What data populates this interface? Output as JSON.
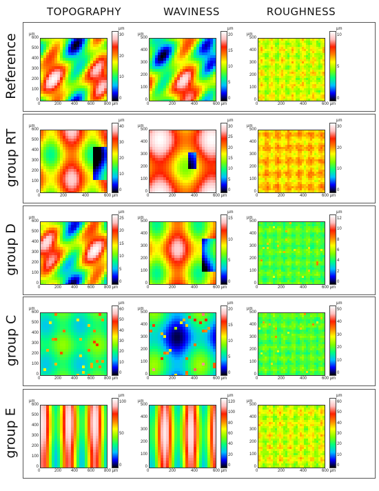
{
  "columns": [
    "TOPOGRAPHY",
    "WAVINESS",
    "ROUGHNESS"
  ],
  "unit": "µm",
  "rows": [
    {
      "label": "Reference",
      "panels": [
        {
          "type": "topography",
          "y_ticks": [
            "600",
            "500",
            "400",
            "300",
            "200",
            "100",
            "0"
          ],
          "x_ticks": [
            "0",
            "200",
            "400",
            "600",
            "800 µm"
          ],
          "cbar_ticks": [
            "30",
            "20",
            "10",
            "0"
          ],
          "scheme": "mixed"
        },
        {
          "type": "waviness",
          "y_ticks": [
            "500",
            "400",
            "300",
            "200",
            "100",
            "0"
          ],
          "x_ticks": [
            "0",
            "200",
            "400",
            "600 µm"
          ],
          "cbar_ticks": [
            "20",
            "15",
            "10",
            "5",
            "0"
          ],
          "scheme": "mixed"
        },
        {
          "type": "roughness",
          "y_ticks": [
            "500",
            "400",
            "300",
            "200",
            "100",
            "0"
          ],
          "x_ticks": [
            "0",
            "200",
            "400",
            "600 µm"
          ],
          "cbar_ticks": [
            "10",
            "5",
            "0"
          ],
          "scheme": "fine-yellow"
        }
      ]
    },
    {
      "label": "group RT",
      "panels": [
        {
          "type": "topography",
          "y_ticks": [
            "600",
            "500",
            "400",
            "300",
            "200",
            "100",
            "0"
          ],
          "x_ticks": [
            "0",
            "200",
            "400",
            "600 µm"
          ],
          "cbar_ticks": [
            "40",
            "30",
            "20",
            "10",
            "0"
          ],
          "scheme": "warm"
        },
        {
          "type": "waviness",
          "y_ticks": [
            "500",
            "400",
            "300",
            "200",
            "100",
            "0"
          ],
          "x_ticks": [
            "0",
            "200",
            "400",
            "600 µm"
          ],
          "cbar_ticks": [
            "30",
            "25",
            "20",
            "15",
            "10",
            "5",
            "0"
          ],
          "scheme": "hot"
        },
        {
          "type": "roughness",
          "y_ticks": [
            "500",
            "400",
            "300",
            "200",
            "100",
            "0"
          ],
          "x_ticks": [
            "0",
            "200",
            "400",
            "600 µm"
          ],
          "cbar_ticks": [
            "30",
            "20",
            "10",
            "0"
          ],
          "scheme": "fine-orange"
        }
      ]
    },
    {
      "label": "group D",
      "panels": [
        {
          "type": "topography",
          "y_ticks": [
            "600",
            "500",
            "400",
            "300",
            "200",
            "100",
            "0"
          ],
          "x_ticks": [
            "0",
            "200",
            "400",
            "600",
            "800 µm"
          ],
          "cbar_ticks": [
            "25",
            "20",
            "15",
            "10",
            "5",
            "0"
          ],
          "scheme": "mixed"
        },
        {
          "type": "waviness",
          "y_ticks": [
            "500",
            "400",
            "300",
            "200",
            "100",
            "0"
          ],
          "x_ticks": [
            "0",
            "200",
            "400",
            "600 µm"
          ],
          "cbar_ticks": [
            "15",
            "10",
            "5",
            "0"
          ],
          "scheme": "warm"
        },
        {
          "type": "roughness",
          "y_ticks": [
            "500",
            "400",
            "300",
            "200",
            "100",
            "0"
          ],
          "x_ticks": [
            "0",
            "200",
            "400",
            "600 µm"
          ],
          "cbar_ticks": [
            "12",
            "10",
            "8",
            "6",
            "4",
            "2",
            "0"
          ],
          "scheme": "fine-green"
        }
      ]
    },
    {
      "label": "group C",
      "panels": [
        {
          "type": "topography",
          "y_ticks": [
            "600",
            "500",
            "400",
            "300",
            "200",
            "100",
            "0"
          ],
          "x_ticks": [
            "0",
            "200",
            "400",
            "600",
            "800 µm"
          ],
          "cbar_ticks": [
            "60",
            "50",
            "40",
            "30",
            "20",
            "10",
            "0"
          ],
          "scheme": "cool"
        },
        {
          "type": "waviness",
          "y_ticks": [
            "500",
            "400",
            "300",
            "200",
            "100",
            "0"
          ],
          "x_ticks": [
            "0",
            "200",
            "400",
            "600 µm"
          ],
          "cbar_ticks": [
            "20",
            "15",
            "10",
            "5",
            "0"
          ],
          "scheme": "blue"
        },
        {
          "type": "roughness",
          "y_ticks": [
            "500",
            "400",
            "300",
            "200",
            "100",
            "0"
          ],
          "x_ticks": [
            "0",
            "200",
            "400",
            "600 µm"
          ],
          "cbar_ticks": [
            "50",
            "40",
            "30",
            "20",
            "10",
            "0"
          ],
          "scheme": "fine-green"
        }
      ]
    },
    {
      "label": "group E",
      "panels": [
        {
          "type": "topography",
          "y_ticks": [
            "600",
            "500",
            "400",
            "300",
            "200",
            "100",
            "0"
          ],
          "x_ticks": [
            "0",
            "200",
            "400",
            "600",
            "800 µm"
          ],
          "cbar_ticks": [
            "100",
            "50",
            "0"
          ],
          "scheme": "stripes"
        },
        {
          "type": "waviness",
          "y_ticks": [
            "500",
            "400",
            "300",
            "200",
            "100",
            "0"
          ],
          "x_ticks": [
            "0",
            "200",
            "400",
            "600 µm"
          ],
          "cbar_ticks": [
            "120",
            "100",
            "80",
            "60",
            "40",
            "20",
            "0"
          ],
          "scheme": "stripes"
        },
        {
          "type": "roughness",
          "y_ticks": [
            "500",
            "400",
            "300",
            "200",
            "100",
            "0"
          ],
          "x_ticks": [
            "0",
            "200",
            "400",
            "600 µm"
          ],
          "cbar_ticks": [
            "60",
            "50",
            "40",
            "30",
            "20",
            "10",
            "0"
          ],
          "scheme": "fine-yellow"
        }
      ]
    }
  ],
  "colormap": [
    "#000000",
    "#0000ff",
    "#00bfff",
    "#00ff80",
    "#7fff00",
    "#ffff00",
    "#ff8000",
    "#ff2000",
    "#ffc0c0",
    "#ffffff"
  ]
}
